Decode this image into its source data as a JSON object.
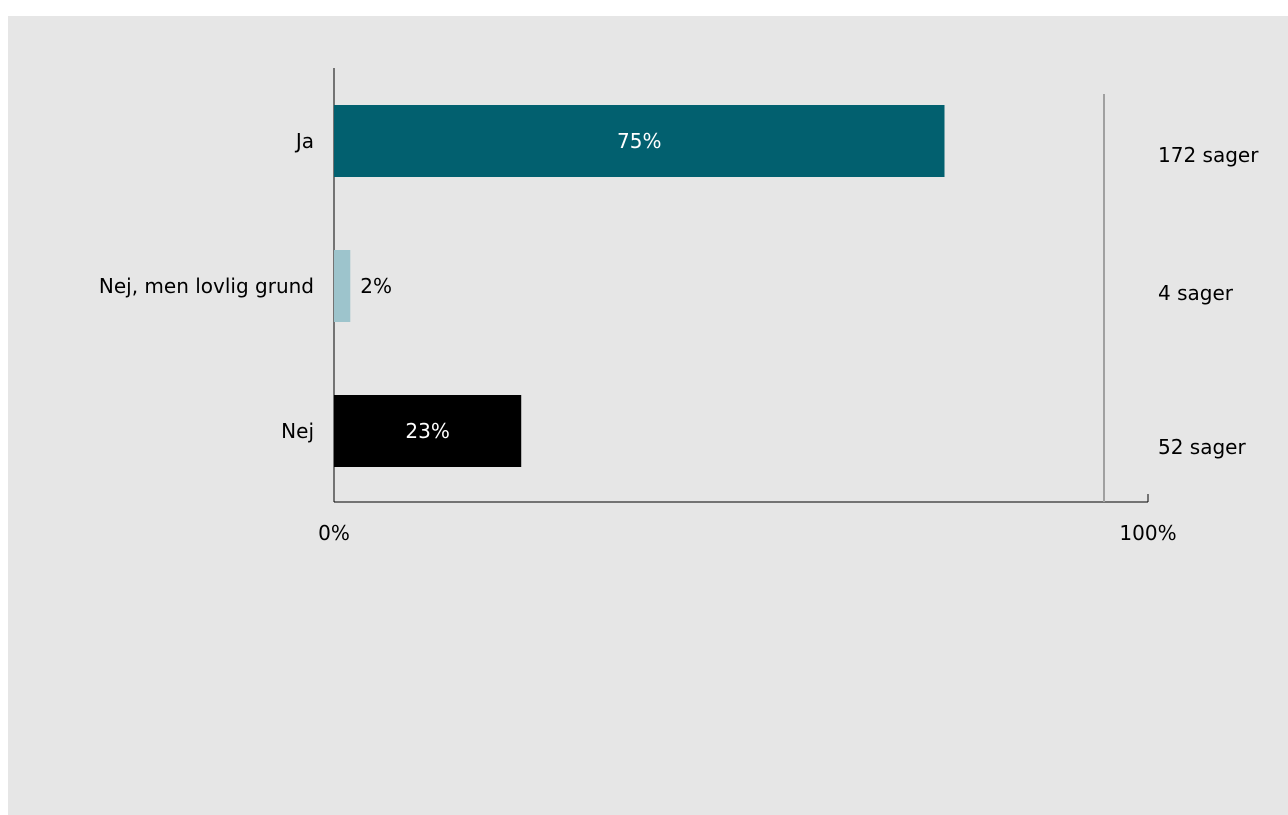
{
  "chart_data": {
    "type": "bar",
    "orientation": "horizontal",
    "categories": [
      "Ja",
      "Nej, men lovlig grund",
      "Nej"
    ],
    "values": [
      75,
      2,
      23
    ],
    "value_labels": [
      "75%",
      "2%",
      "23%"
    ],
    "counts": [
      "172 sager",
      "4 sager",
      "52 sager"
    ],
    "xlim": [
      0,
      100
    ],
    "x_tick_labels": [
      "0%",
      "100%"
    ],
    "title": "",
    "xlabel": "",
    "ylabel": "",
    "grid": false,
    "legend": "none",
    "colors": [
      "#02606f",
      "#9dc4cc",
      "#000000"
    ],
    "label_colors": [
      "#ffffff",
      "#000000",
      "#ffffff"
    ],
    "label_inside": [
      true,
      false,
      true
    ]
  }
}
